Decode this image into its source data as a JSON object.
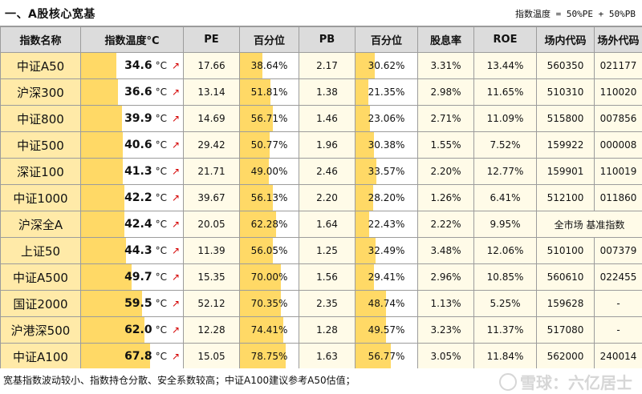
{
  "header": {
    "title": "一、A股核心宽基",
    "formula": "指数温度 = 50%PE + 50%PB"
  },
  "columns": [
    "指数名称",
    "指数温度°C",
    "PE",
    "百分位",
    "PB",
    "百分位",
    "股息率",
    "ROE",
    "场内代码",
    "场外代码"
  ],
  "temp_unit": "°C",
  "trend_icon": "arrow-up-right-icon",
  "colors": {
    "bar": "#ffd966",
    "name_bg": "#ffeaa8",
    "header_bg": "#dcdcdc",
    "arrow": "#d40000"
  },
  "rows": [
    {
      "name": "中证A50",
      "temp": "34.6",
      "temp_level": 0.346,
      "pe": "17.66",
      "pe_pct": "38.64%",
      "pe_pct_val": 0.3864,
      "pb": "2.17",
      "pb_pct": "30.62%",
      "pb_pct_val": 0.3062,
      "dy": "3.31%",
      "roe": "13.44%",
      "code_in": "560350",
      "code_out": "021177"
    },
    {
      "name": "沪深300",
      "temp": "36.6",
      "temp_level": 0.366,
      "pe": "13.14",
      "pe_pct": "51.81%",
      "pe_pct_val": 0.5181,
      "pb": "1.38",
      "pb_pct": "21.35%",
      "pb_pct_val": 0.2135,
      "dy": "2.98%",
      "roe": "11.65%",
      "code_in": "510310",
      "code_out": "110020"
    },
    {
      "name": "中证800",
      "temp": "39.9",
      "temp_level": 0.399,
      "pe": "14.69",
      "pe_pct": "56.71%",
      "pe_pct_val": 0.5671,
      "pb": "1.46",
      "pb_pct": "23.06%",
      "pb_pct_val": 0.2306,
      "dy": "2.71%",
      "roe": "11.09%",
      "code_in": "515800",
      "code_out": "007856"
    },
    {
      "name": "中证500",
      "temp": "40.6",
      "temp_level": 0.406,
      "pe": "29.42",
      "pe_pct": "50.77%",
      "pe_pct_val": 0.5077,
      "pb": "1.96",
      "pb_pct": "30.38%",
      "pb_pct_val": 0.3038,
      "dy": "1.55%",
      "roe": "7.52%",
      "code_in": "159922",
      "code_out": "000008"
    },
    {
      "name": "深证100",
      "temp": "41.3",
      "temp_level": 0.413,
      "pe": "21.71",
      "pe_pct": "49.00%",
      "pe_pct_val": 0.49,
      "pb": "2.46",
      "pb_pct": "33.57%",
      "pb_pct_val": 0.3357,
      "dy": "2.20%",
      "roe": "12.77%",
      "code_in": "159901",
      "code_out": "110019"
    },
    {
      "name": "中证1000",
      "temp": "42.2",
      "temp_level": 0.422,
      "pe": "39.67",
      "pe_pct": "56.13%",
      "pe_pct_val": 0.5613,
      "pb": "2.20",
      "pb_pct": "28.20%",
      "pb_pct_val": 0.282,
      "dy": "1.26%",
      "roe": "6.41%",
      "code_in": "512100",
      "code_out": "011860"
    },
    {
      "name": "沪深全A",
      "temp": "42.4",
      "temp_level": 0.424,
      "pe": "20.05",
      "pe_pct": "62.28%",
      "pe_pct_val": 0.6228,
      "pb": "1.64",
      "pb_pct": "22.43%",
      "pb_pct_val": 0.2243,
      "dy": "2.22%",
      "roe": "9.95%",
      "codes_merged": "全市场 基准指数"
    },
    {
      "name": "上证50",
      "temp": "44.3",
      "temp_level": 0.443,
      "pe": "11.39",
      "pe_pct": "56.05%",
      "pe_pct_val": 0.5605,
      "pb": "1.25",
      "pb_pct": "32.49%",
      "pb_pct_val": 0.3249,
      "dy": "3.48%",
      "roe": "12.06%",
      "code_in": "510100",
      "code_out": "007379"
    },
    {
      "name": "中证A500",
      "temp": "49.7",
      "temp_level": 0.497,
      "pe": "15.35",
      "pe_pct": "70.00%",
      "pe_pct_val": 0.7,
      "pb": "1.56",
      "pb_pct": "29.41%",
      "pb_pct_val": 0.2941,
      "dy": "2.96%",
      "roe": "10.85%",
      "code_in": "560610",
      "code_out": "022455"
    },
    {
      "name": "国证2000",
      "temp": "59.5",
      "temp_level": 0.595,
      "pe": "52.12",
      "pe_pct": "70.35%",
      "pe_pct_val": 0.7035,
      "pb": "2.35",
      "pb_pct": "48.74%",
      "pb_pct_val": 0.4874,
      "dy": "1.13%",
      "roe": "5.25%",
      "code_in": "159628",
      "code_out": "-"
    },
    {
      "name": "沪港深500",
      "temp": "62.0",
      "temp_level": 0.62,
      "pe": "12.28",
      "pe_pct": "74.41%",
      "pe_pct_val": 0.7441,
      "pb": "1.28",
      "pb_pct": "49.57%",
      "pb_pct_val": 0.4957,
      "dy": "3.23%",
      "roe": "11.37%",
      "code_in": "517080",
      "code_out": "-"
    },
    {
      "name": "中证A100",
      "temp": "67.8",
      "temp_level": 0.678,
      "pe": "15.05",
      "pe_pct": "78.75%",
      "pe_pct_val": 0.7875,
      "pb": "1.63",
      "pb_pct": "56.77%",
      "pb_pct_val": 0.5677,
      "dy": "3.05%",
      "roe": "11.84%",
      "code_in": "562000",
      "code_out": "240014"
    }
  ],
  "footer": {
    "note": "宽基指数波动较小、指数持仓分散、安全系数较高；中证A100建议参考A50估值；",
    "watermark": "雪球：六亿居士"
  }
}
